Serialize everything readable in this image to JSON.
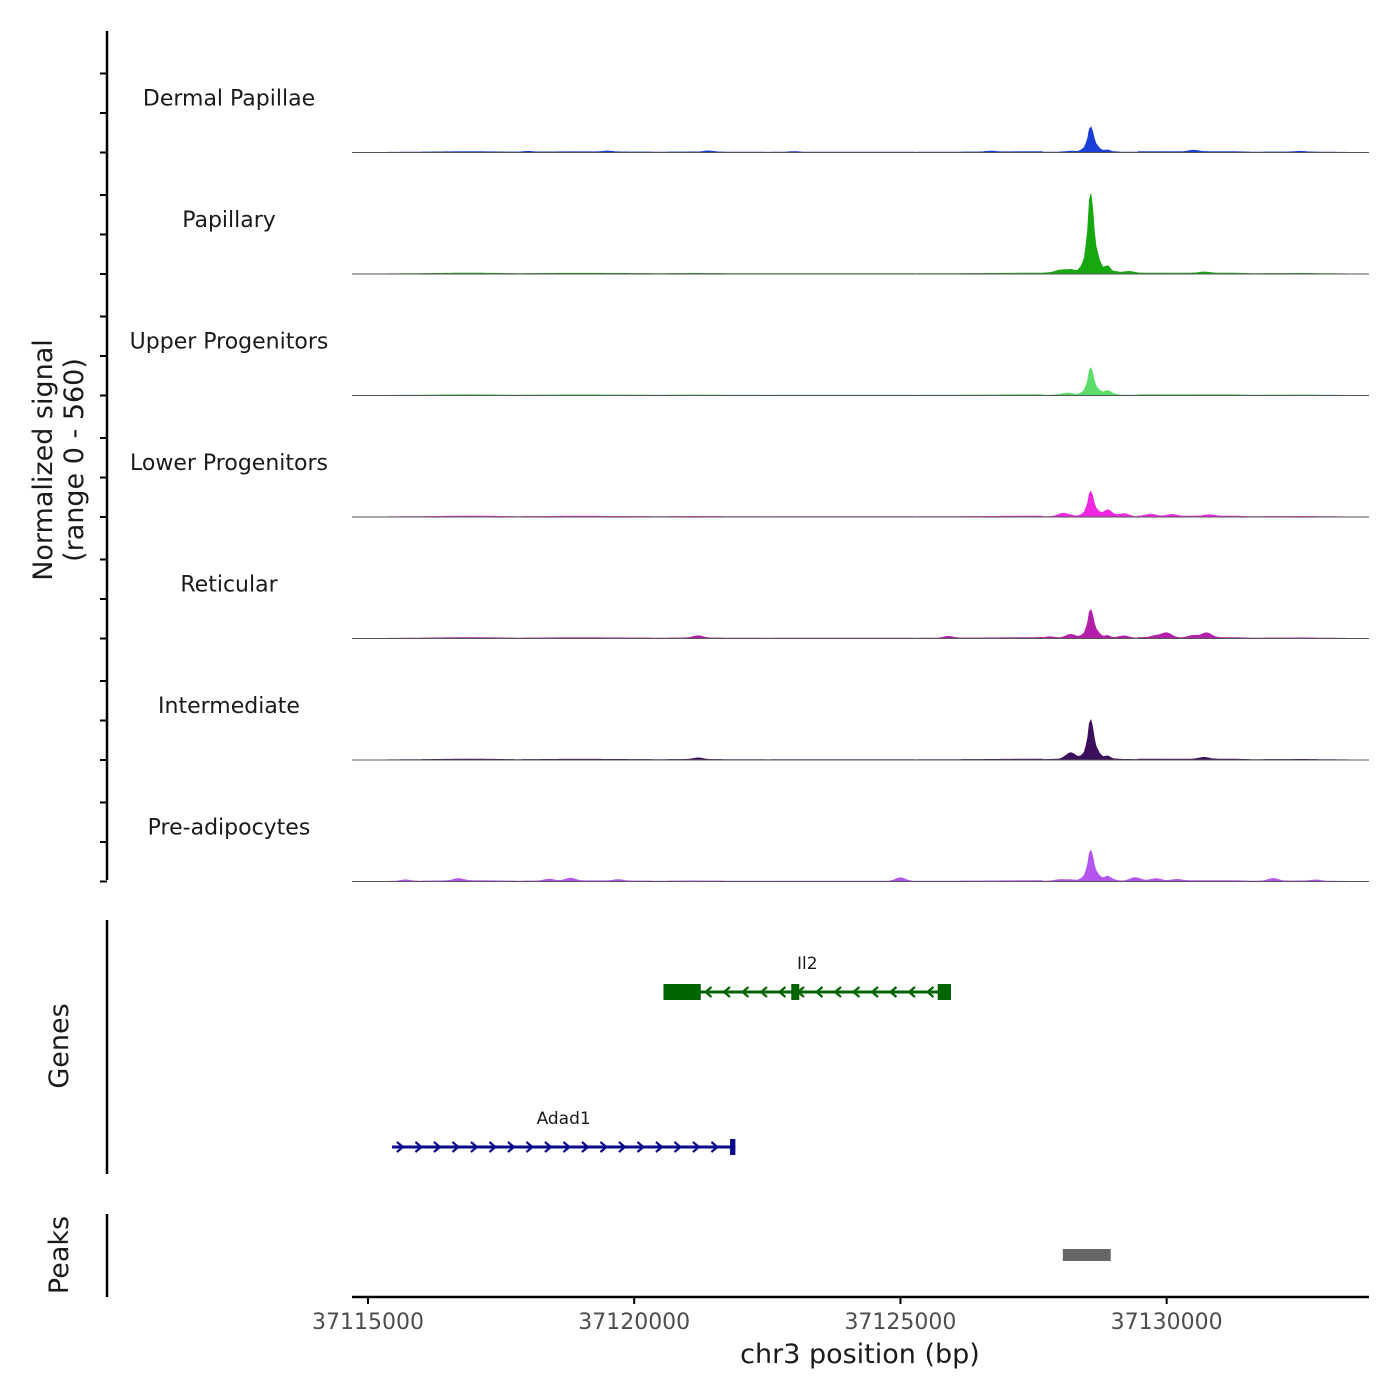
{
  "chart_data": {
    "type": "area",
    "title": "",
    "xlabel": "chr3 position (bp)",
    "ylabel": [
      "Normalized signal",
      "(range 0 - 560)"
    ],
    "xlim": [
      37114700,
      37133800
    ],
    "ylim": [
      0,
      560
    ],
    "x_ticks": [
      37115000,
      37120000,
      37125000,
      37130000
    ],
    "x_tick_labels": [
      "37115000",
      "37120000",
      "37125000",
      "37130000"
    ],
    "base": [
      [
        37114700,
        0
      ],
      [
        37115600,
        2
      ],
      [
        37116300,
        4
      ],
      [
        37116900,
        6
      ],
      [
        37117800,
        3
      ],
      [
        37118900,
        5
      ],
      [
        37120500,
        3
      ],
      [
        37121100,
        4
      ],
      [
        37122500,
        2
      ],
      [
        37124000,
        3
      ],
      [
        37125300,
        2
      ],
      [
        37126700,
        4
      ],
      [
        37127600,
        6
      ],
      [
        37128000,
        12
      ],
      [
        37128200,
        30
      ],
      [
        37128320,
        22
      ],
      [
        37128400,
        55
      ],
      [
        37128460,
        110
      ],
      [
        37128520,
        300
      ],
      [
        37128560,
        560
      ],
      [
        37128600,
        480
      ],
      [
        37128660,
        200
      ],
      [
        37128740,
        90
      ],
      [
        37128800,
        45
      ],
      [
        37128900,
        55
      ],
      [
        37128980,
        20
      ],
      [
        37129150,
        10
      ],
      [
        37129600,
        6
      ],
      [
        37130300,
        5
      ],
      [
        37130900,
        8
      ],
      [
        37131600,
        3
      ],
      [
        37132600,
        4
      ],
      [
        37133200,
        2
      ],
      [
        37133800,
        0
      ]
    ],
    "series": [
      {
        "name": "Dermal Papillae",
        "color": "#1a3fd6",
        "peak_scale": 0.23,
        "bumps": [
          [
            37118000,
            3
          ],
          [
            37119500,
            4
          ],
          [
            37121400,
            5
          ],
          [
            37123000,
            3
          ],
          [
            37126700,
            4
          ],
          [
            37130500,
            6
          ],
          [
            37132500,
            3
          ]
        ]
      },
      {
        "name": "Papillary",
        "color": "#17a80f",
        "peak_scale": 0.72,
        "bumps": [
          [
            37128000,
            10
          ],
          [
            37129300,
            6
          ],
          [
            37130700,
            5
          ]
        ]
      },
      {
        "name": "Upper Progenitors",
        "color": "#5cdc6a",
        "peak_scale": 0.25,
        "bumps": [
          [
            37128100,
            6
          ],
          [
            37128900,
            10
          ]
        ]
      },
      {
        "name": "Lower Progenitors",
        "color": "#f028e0",
        "peak_scale": 0.23,
        "bumps": [
          [
            37128050,
            14
          ],
          [
            37128900,
            22
          ],
          [
            37129200,
            14
          ],
          [
            37129700,
            9
          ],
          [
            37130100,
            8
          ],
          [
            37130800,
            6
          ]
        ]
      },
      {
        "name": "Reticular",
        "color": "#b21fa8",
        "peak_scale": 0.26,
        "bumps": [
          [
            37121200,
            10
          ],
          [
            37125900,
            8
          ],
          [
            37127800,
            6
          ],
          [
            37128200,
            12
          ],
          [
            37129200,
            10
          ],
          [
            37129800,
            9
          ],
          [
            37130000,
            22
          ],
          [
            37130500,
            10
          ],
          [
            37130750,
            22
          ]
        ]
      },
      {
        "name": "Intermediate",
        "color": "#3b0f5c",
        "peak_scale": 0.36,
        "bumps": [
          [
            37121200,
            7
          ],
          [
            37128200,
            24
          ],
          [
            37130700,
            8
          ]
        ]
      },
      {
        "name": "Pre-adipocytes",
        "color": "#b455f0",
        "peak_scale": 0.28,
        "bumps": [
          [
            37115700,
            6
          ],
          [
            37116700,
            10
          ],
          [
            37118400,
            8
          ],
          [
            37118800,
            12
          ],
          [
            37119700,
            6
          ],
          [
            37125000,
            16
          ],
          [
            37128000,
            6
          ],
          [
            37128900,
            10
          ],
          [
            37129400,
            16
          ],
          [
            37129800,
            9
          ],
          [
            37130200,
            6
          ],
          [
            37132000,
            12
          ],
          [
            37132800,
            5
          ]
        ]
      }
    ],
    "genes": [
      {
        "name": "Il2",
        "strand": "-",
        "color": "#006400",
        "start": 37120550,
        "end": 37125950,
        "exons": [
          [
            37120550,
            37121250
          ],
          [
            37122950,
            37123100
          ],
          [
            37125700,
            37125950
          ]
        ]
      },
      {
        "name": "Adad1",
        "strand": "+",
        "color": "#0a0a8c",
        "start": 37115450,
        "end": 37121900,
        "exons": [
          [
            37121800,
            37121900
          ]
        ]
      }
    ],
    "peaks": [
      [
        37128050,
        37128950
      ]
    ],
    "panel_labels": {
      "genes": "Genes",
      "peaks": "Peaks"
    },
    "colors": {
      "peak": "#666666",
      "axis": "#000000",
      "baseline": "#555555",
      "tick_text": "#4d4d4d"
    }
  }
}
